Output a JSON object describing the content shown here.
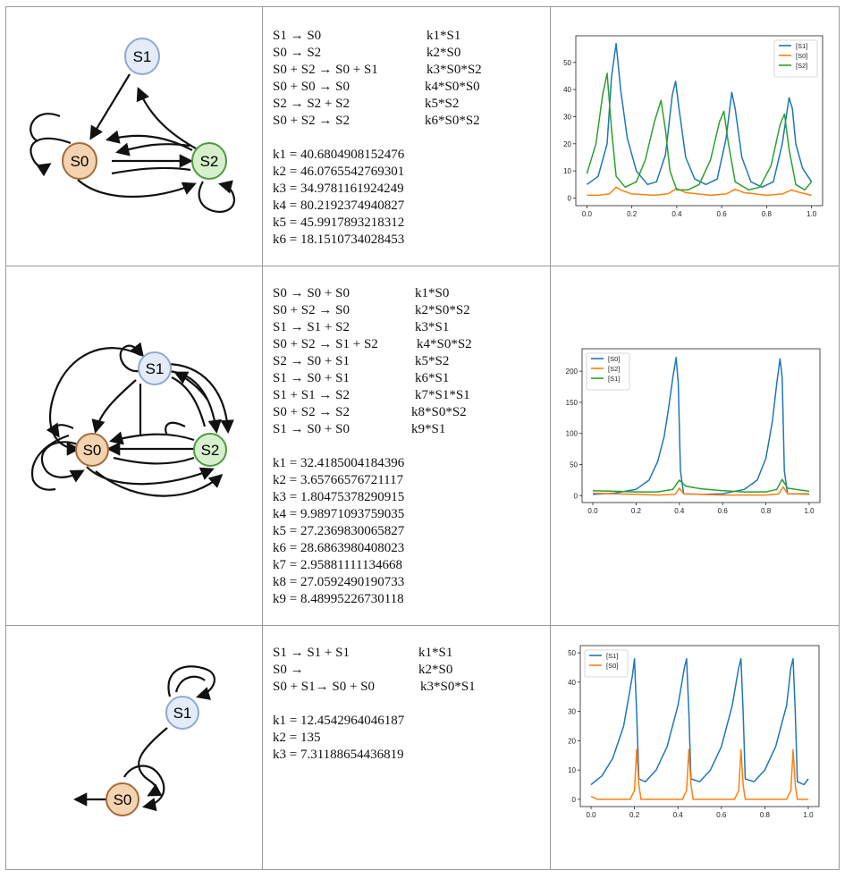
{
  "rows": [
    {
      "network": {
        "nodes": [
          {
            "id": "S1",
            "label": "S1",
            "fill": "#e4ecf8",
            "stroke": "#8fa9d4"
          },
          {
            "id": "S0",
            "label": "S0",
            "fill": "#f3d3b0",
            "stroke": "#a46a3a"
          },
          {
            "id": "S2",
            "label": "S2",
            "fill": "#d7f0cc",
            "stroke": "#4f9a40"
          }
        ]
      },
      "reactions": [
        {
          "eq": "S1 → S0",
          "rate": "k1*S1"
        },
        {
          "eq": "S0 → S2",
          "rate": "k2*S0"
        },
        {
          "eq": "S0 + S2 → S0 + S1",
          "rate": "k3*S0*S2"
        },
        {
          "eq": "S0 + S0 → S0",
          "rate": "k4*S0*S0"
        },
        {
          "eq": "S2 → S2 + S2",
          "rate": "k5*S2"
        },
        {
          "eq": "S0 + S2 → S2",
          "rate": "k6*S0*S2"
        }
      ],
      "constants": [
        "k1 = 40.6804908152476",
        "k2 = 46.0765542769301",
        "k3 = 34.9781161924249",
        "k4 = 80.2192374940827",
        "k5 = 45.9917893218312",
        "k6 = 18.1510734028453"
      ],
      "chart_data": {
        "type": "line",
        "xlim": [
          0,
          1.0
        ],
        "ylim": [
          0,
          57
        ],
        "xticks": [
          "0.0",
          "0.2",
          "0.4",
          "0.6",
          "0.8",
          "1.0"
        ],
        "yticks": [
          "0",
          "10",
          "20",
          "30",
          "40",
          "50"
        ],
        "legend": "top-right",
        "series": [
          {
            "name": "[S1]",
            "color": "#1f77b4",
            "x": [
              0,
              0.05,
              0.09,
              0.11,
              0.13,
              0.15,
              0.18,
              0.22,
              0.27,
              0.31,
              0.35,
              0.38,
              0.395,
              0.41,
              0.44,
              0.48,
              0.53,
              0.58,
              0.62,
              0.645,
              0.66,
              0.69,
              0.73,
              0.78,
              0.83,
              0.87,
              0.9,
              0.915,
              0.93,
              0.96,
              1.0
            ],
            "y": [
              5,
              8,
              20,
              45,
              57,
              40,
              22,
              10,
              5,
              6,
              16,
              38,
              43,
              33,
              15,
              7,
              5,
              7,
              22,
              39,
              33,
              15,
              6,
              4,
              6,
              20,
              37,
              33,
              20,
              11,
              6
            ]
          },
          {
            "name": "[S0]",
            "color": "#ff7f0e",
            "x": [
              0,
              0.05,
              0.1,
              0.13,
              0.15,
              0.2,
              0.3,
              0.36,
              0.4,
              0.44,
              0.55,
              0.62,
              0.66,
              0.7,
              0.8,
              0.87,
              0.91,
              0.95,
              1.0
            ],
            "y": [
              1,
              1,
              1.5,
              4,
              3,
              1.5,
              1,
              1.5,
              3.5,
              2,
              1,
              1.5,
              3.2,
              2,
              1,
              1.5,
              3,
              2,
              1
            ]
          },
          {
            "name": "[S2]",
            "color": "#2ca02c",
            "x": [
              0,
              0.04,
              0.07,
              0.09,
              0.11,
              0.13,
              0.17,
              0.22,
              0.26,
              0.3,
              0.33,
              0.35,
              0.37,
              0.4,
              0.45,
              0.5,
              0.55,
              0.59,
              0.61,
              0.63,
              0.66,
              0.72,
              0.77,
              0.82,
              0.86,
              0.88,
              0.9,
              0.93,
              0.97,
              1.0
            ],
            "y": [
              9,
              20,
              38,
              46,
              25,
              8,
              4,
              6,
              14,
              28,
              36,
              25,
              10,
              3,
              3,
              5,
              14,
              28,
              32,
              20,
              6,
              3,
              4,
              12,
              27,
              31,
              18,
              5,
              3,
              6
            ]
          }
        ]
      }
    },
    {
      "network": {
        "nodes": [
          {
            "id": "S1",
            "label": "S1",
            "fill": "#e4ecf8",
            "stroke": "#8fa9d4"
          },
          {
            "id": "S0",
            "label": "S0",
            "fill": "#f3d3b0",
            "stroke": "#a46a3a"
          },
          {
            "id": "S2",
            "label": "S2",
            "fill": "#d7f0cc",
            "stroke": "#4f9a40"
          }
        ]
      },
      "reactions": [
        {
          "eq": "S0 → S0 + S0",
          "rate": "k1*S0"
        },
        {
          "eq": "S0 + S2 → S0",
          "rate": "k2*S0*S2"
        },
        {
          "eq": "S1 → S1 + S2",
          "rate": "k3*S1"
        },
        {
          "eq": "S0 + S2 → S1 + S2",
          "rate": "k4*S0*S2"
        },
        {
          "eq": "S2 → S0 + S1",
          "rate": "k5*S2"
        },
        {
          "eq": "S1 → S0 + S1",
          "rate": "k6*S1"
        },
        {
          "eq": "S1 + S1 → S2",
          "rate": "k7*S1*S1"
        },
        {
          "eq": "S0 + S2 → S2",
          "rate": "k8*S0*S2"
        },
        {
          "eq": "S1 → S0 + S0",
          "rate": "k9*S1"
        }
      ],
      "constants": [
        "k1 = 32.4185004184396",
        "k2 = 3.65766576721117",
        "k3 = 1.80475378290915",
        "k4 = 9.98971093759035",
        "k5 = 27.2369830065827",
        "k6 = 28.6863980408023",
        "k7 = 2.95881111134668",
        "k8 = 27.0592490190733",
        "k9 = 8.48995226730118"
      ],
      "chart_data": {
        "type": "line",
        "xlim": [
          0,
          1.0
        ],
        "ylim": [
          0,
          225
        ],
        "xticks": [
          "0.0",
          "0.2",
          "0.4",
          "0.6",
          "0.8",
          "1.0"
        ],
        "yticks": [
          "0",
          "50",
          "100",
          "150",
          "200"
        ],
        "legend": "top-left",
        "series": [
          {
            "name": "[S0]",
            "color": "#1f77b4",
            "x": [
              0,
              0.1,
              0.2,
              0.26,
              0.3,
              0.33,
              0.35,
              0.37,
              0.385,
              0.395,
              0.405,
              0.42,
              0.5,
              0.6,
              0.7,
              0.76,
              0.8,
              0.83,
              0.85,
              0.865,
              0.875,
              0.885,
              0.9,
              1.0
            ],
            "y": [
              2,
              4,
              10,
              25,
              55,
              95,
              140,
              190,
              222,
              180,
              40,
              3,
              2,
              3,
              10,
              25,
              60,
              120,
              180,
              220,
              190,
              40,
              3,
              3
            ]
          },
          {
            "name": "[S2]",
            "color": "#ff7f0e",
            "x": [
              0,
              0.1,
              0.2,
              0.3,
              0.38,
              0.4,
              0.42,
              0.5,
              0.6,
              0.7,
              0.8,
              0.86,
              0.88,
              0.9,
              1.0
            ],
            "y": [
              4,
              3,
              2,
              1,
              2,
              12,
              3,
              2,
              1,
              1,
              1,
              3,
              14,
              3,
              2
            ]
          },
          {
            "name": "[S1]",
            "color": "#2ca02c",
            "x": [
              0,
              0.1,
              0.2,
              0.3,
              0.37,
              0.4,
              0.43,
              0.5,
              0.6,
              0.7,
              0.8,
              0.85,
              0.875,
              0.9,
              1.0
            ],
            "y": [
              8,
              7,
              6,
              6,
              10,
              25,
              15,
              11,
              8,
              6,
              6,
              10,
              26,
              12,
              7
            ]
          }
        ]
      }
    },
    {
      "network": {
        "nodes": [
          {
            "id": "S1",
            "label": "S1",
            "fill": "#e4ecf8",
            "stroke": "#8fa9d4"
          },
          {
            "id": "S0",
            "label": "S0",
            "fill": "#f3d3b0",
            "stroke": "#a46a3a"
          }
        ]
      },
      "reactions": [
        {
          "eq": "S1 → S1 + S1",
          "rate": "k1*S1"
        },
        {
          "eq": "S0 →",
          "rate": "k2*S0"
        },
        {
          "eq": "S0 + S1→ S0 + S0",
          "rate": "k3*S0*S1"
        }
      ],
      "constants": [
        "k1 = 12.4542964046187",
        "k2 = 135",
        "k3 = 7.31188654436819"
      ],
      "chart_data": {
        "type": "line",
        "xlim": [
          0,
          1.0
        ],
        "ylim": [
          0,
          50
        ],
        "xticks": [
          "0.0",
          "0.2",
          "0.4",
          "0.6",
          "0.8",
          "1.0"
        ],
        "yticks": [
          "0",
          "10",
          "20",
          "30",
          "40",
          "50"
        ],
        "legend": "top-left",
        "series": [
          {
            "name": "[S1]",
            "color": "#1f77b4",
            "x": [
              0,
              0.05,
              0.1,
              0.15,
              0.19,
              0.2,
              0.21,
              0.22,
              0.25,
              0.3,
              0.35,
              0.4,
              0.43,
              0.44,
              0.45,
              0.46,
              0.5,
              0.55,
              0.6,
              0.65,
              0.68,
              0.69,
              0.7,
              0.71,
              0.75,
              0.8,
              0.85,
              0.9,
              0.92,
              0.93,
              0.94,
              0.95,
              0.98,
              1.0
            ],
            "y": [
              5,
              8,
              14,
              25,
              42,
              48,
              30,
              7,
              6,
              10,
              18,
              32,
              45,
              48,
              30,
              7,
              6,
              10,
              18,
              32,
              45,
              48,
              30,
              7,
              6,
              10,
              18,
              32,
              45,
              48,
              30,
              6,
              5,
              7
            ]
          },
          {
            "name": "[S0]",
            "color": "#ff7f0e",
            "x": [
              0,
              0.03,
              0.1,
              0.18,
              0.2,
              0.21,
              0.22,
              0.23,
              0.3,
              0.42,
              0.44,
              0.45,
              0.46,
              0.47,
              0.55,
              0.66,
              0.68,
              0.69,
              0.7,
              0.71,
              0.8,
              0.9,
              0.92,
              0.93,
              0.94,
              0.95,
              1.0
            ],
            "y": [
              1,
              0,
              0,
              0,
              3,
              17,
              5,
              0,
              0,
              0,
              3,
              17,
              5,
              0,
              0,
              0,
              3,
              17,
              5,
              0,
              0,
              0,
              3,
              17,
              5,
              0,
              0
            ]
          }
        ]
      }
    }
  ]
}
